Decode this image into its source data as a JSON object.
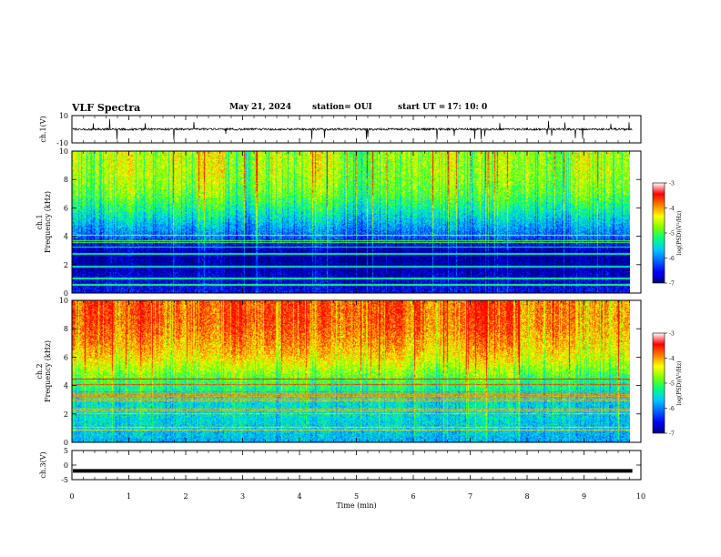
{
  "header": {
    "title": "VLF Spectra",
    "date": "May 21, 2024",
    "station": "station= OUI",
    "start_label": "start  UT  =",
    "start_time": "17: 10: 0"
  },
  "colors": {
    "colormap": [
      "#00007f",
      "#0000ff",
      "#0066ff",
      "#00c8ff",
      "#00ff80",
      "#80ff00",
      "#ffff00",
      "#ff8000",
      "#ff0000",
      "#ffffff"
    ]
  },
  "chart_data": [
    {
      "type": "line",
      "panel": "ch1_waveform",
      "ylabel": "ch.1(V)",
      "ylim": [
        -10,
        10
      ],
      "yticks": [
        "10",
        "-10"
      ],
      "x_range_min": [
        0,
        10
      ],
      "baseline_y": 0,
      "noise_amplitude_v": 1.5
    },
    {
      "type": "heatmap",
      "panel": "ch1_spectrogram",
      "ylabel": "ch.1\nFrequency (kHz)",
      "ylim": [
        0,
        10
      ],
      "yticks": [
        "0",
        "2",
        "4",
        "6",
        "8",
        "10"
      ],
      "x_range_min": [
        0,
        10
      ],
      "data_end_min": 9.8,
      "colorbar": {
        "label": "log(PSD)(V²/Hz)",
        "range": [
          -7,
          -3
        ],
        "ticks": [
          "-3",
          "-4",
          "-5",
          "-6",
          "-7"
        ]
      },
      "profile_freq_khz": [
        0,
        1,
        2,
        3,
        4,
        5,
        6,
        7,
        8,
        9,
        10
      ],
      "profile_log_psd": [
        -6.4,
        -6.6,
        -6.9,
        -6.8,
        -6.0,
        -5.5,
        -5.0,
        -4.6,
        -4.4,
        -4.3,
        -4.3
      ]
    },
    {
      "type": "heatmap",
      "panel": "ch2_spectrogram",
      "ylabel": "ch.2\nFrequency (kHz)",
      "ylim": [
        0,
        10
      ],
      "yticks": [
        "0",
        "2",
        "4",
        "6",
        "8",
        "10"
      ],
      "x_range_min": [
        0,
        10
      ],
      "data_end_min": 9.8,
      "colorbar": {
        "label": "log(PSD)(V²/Hz)",
        "range": [
          -7,
          -3
        ],
        "ticks": [
          "-3",
          "-4",
          "-5",
          "-6",
          "-7"
        ]
      },
      "profile_freq_khz": [
        0,
        1,
        2,
        3,
        4,
        5,
        6,
        7,
        8,
        9,
        10
      ],
      "profile_log_psd": [
        -5.6,
        -5.4,
        -5.3,
        -5.3,
        -4.9,
        -4.4,
        -3.9,
        -3.6,
        -3.4,
        -3.3,
        -3.3
      ]
    },
    {
      "type": "line",
      "panel": "ch3_waveform",
      "ylabel": "ch.3(V)",
      "ylim": [
        -5,
        5
      ],
      "yticks": [
        "5",
        "0",
        "-5"
      ],
      "x_range_min": [
        0,
        10
      ],
      "constant_value_v": -2,
      "xlabel": "Time  (min)",
      "xticks": [
        "0",
        "1",
        "2",
        "3",
        "4",
        "5",
        "6",
        "7",
        "8",
        "9",
        "10"
      ]
    }
  ]
}
